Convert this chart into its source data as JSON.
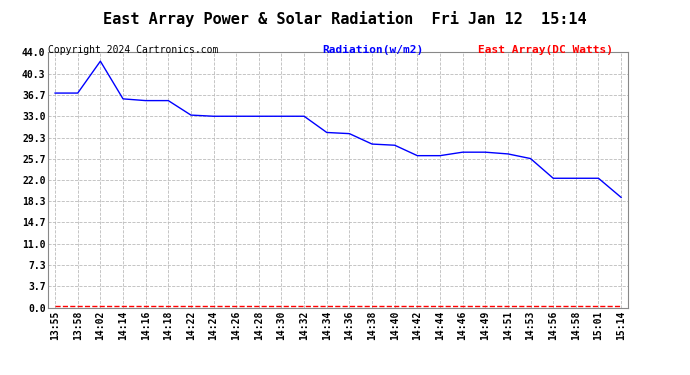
{
  "title": "East Array Power & Solar Radiation  Fri Jan 12  15:14",
  "copyright": "Copyright 2024 Cartronics.com",
  "legend_radiation": "Radiation(w/m2)",
  "legend_east_array": "East Array(DC Watts)",
  "ylabel_values": [
    0.0,
    3.7,
    7.3,
    11.0,
    14.7,
    18.3,
    22.0,
    25.7,
    29.3,
    33.0,
    36.7,
    40.3,
    44.0
  ],
  "xtick_labels": [
    "13:55",
    "13:58",
    "14:02",
    "14:14",
    "14:16",
    "14:18",
    "14:22",
    "14:24",
    "14:26",
    "14:28",
    "14:30",
    "14:32",
    "14:34",
    "14:36",
    "14:38",
    "14:40",
    "14:42",
    "14:44",
    "14:46",
    "14:49",
    "14:51",
    "14:53",
    "14:56",
    "14:58",
    "15:01",
    "15:14"
  ],
  "blue_x": [
    0,
    1,
    2,
    3,
    4,
    5,
    6,
    7,
    8,
    9,
    10,
    11,
    12,
    13,
    14,
    15,
    16,
    17,
    18,
    19,
    20,
    21,
    22,
    23,
    24,
    25
  ],
  "blue_y": [
    37.0,
    37.0,
    42.5,
    36.0,
    35.7,
    35.7,
    33.2,
    33.0,
    33.0,
    33.0,
    33.0,
    33.0,
    30.2,
    30.0,
    28.2,
    28.0,
    26.2,
    26.2,
    26.8,
    26.8,
    26.5,
    25.7,
    22.3,
    22.3,
    22.3,
    19.0
  ],
  "red_x": [
    0,
    1,
    2,
    3,
    4,
    5,
    6,
    7,
    8,
    9,
    10,
    11,
    12,
    13,
    14,
    15,
    16,
    17,
    18,
    19,
    20,
    21,
    22,
    23,
    24,
    25
  ],
  "red_y": [
    0.3,
    0.3,
    0.3,
    0.3,
    0.3,
    0.3,
    0.3,
    0.3,
    0.3,
    0.3,
    0.3,
    0.3,
    0.3,
    0.3,
    0.3,
    0.3,
    0.3,
    0.3,
    0.3,
    0.3,
    0.3,
    0.3,
    0.3,
    0.3,
    0.3,
    0.3
  ],
  "blue_color": "#0000FF",
  "red_color": "#FF0000",
  "background_color": "#FFFFFF",
  "grid_color": "#BBBBBB",
  "title_fontsize": 11,
  "copyright_fontsize": 7,
  "legend_fontsize": 8,
  "tick_fontsize": 7,
  "ymin": 0.0,
  "ymax": 44.0
}
